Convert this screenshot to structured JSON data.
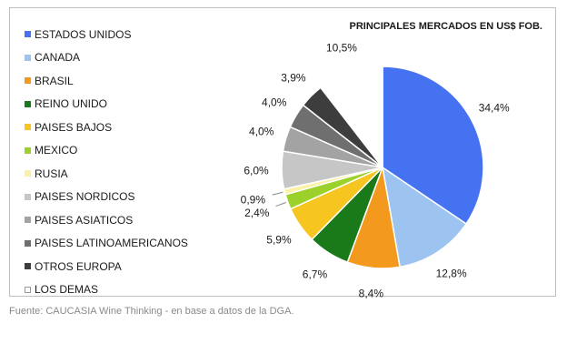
{
  "chart_data": {
    "type": "pie",
    "title": "PRINCIPALES MERCADOS EN US$ FOB.",
    "legend_position": "left",
    "slices": [
      {
        "label": "ESTADOS UNIDOS",
        "value": 34.4,
        "value_label": "34,4%",
        "color": "#4472f0"
      },
      {
        "label": "CANADA",
        "value": 12.8,
        "value_label": "12,8%",
        "color": "#9dc3f0"
      },
      {
        "label": "BRASIL",
        "value": 8.4,
        "value_label": "8,4%",
        "color": "#f39a1e"
      },
      {
        "label": "REINO UNIDO",
        "value": 6.7,
        "value_label": "6,7%",
        "color": "#1a7a1a"
      },
      {
        "label": "PAISES BAJOS",
        "value": 5.9,
        "value_label": "5,9%",
        "color": "#f7c520"
      },
      {
        "label": "MEXICO",
        "value": 2.4,
        "value_label": "2,4%",
        "color": "#9bd12a"
      },
      {
        "label": "RUSIA",
        "value": 0.9,
        "value_label": "0,9%",
        "color": "#fbf2a8"
      },
      {
        "label": "PAISES NORDICOS",
        "value": 6.0,
        "value_label": "6,0%",
        "color": "#c6c6c6"
      },
      {
        "label": "PAISES ASIATICOS",
        "value": 4.0,
        "value_label": "4,0%",
        "color": "#a3a3a3"
      },
      {
        "label": "PAISES LATINOAMERICANOS",
        "value": 4.0,
        "value_label": "4,0%",
        "color": "#6f6f6f"
      },
      {
        "label": "OTROS EUROPA",
        "value": 3.9,
        "value_label": "3,9%",
        "color": "#3d3d3d"
      },
      {
        "label": "LOS DEMAS",
        "value": 10.5,
        "value_label": "10,5%",
        "color": "#ffffff"
      }
    ]
  },
  "source_text": "Fuente: CAUCASIA Wine Thinking - en base a datos de la DGA."
}
